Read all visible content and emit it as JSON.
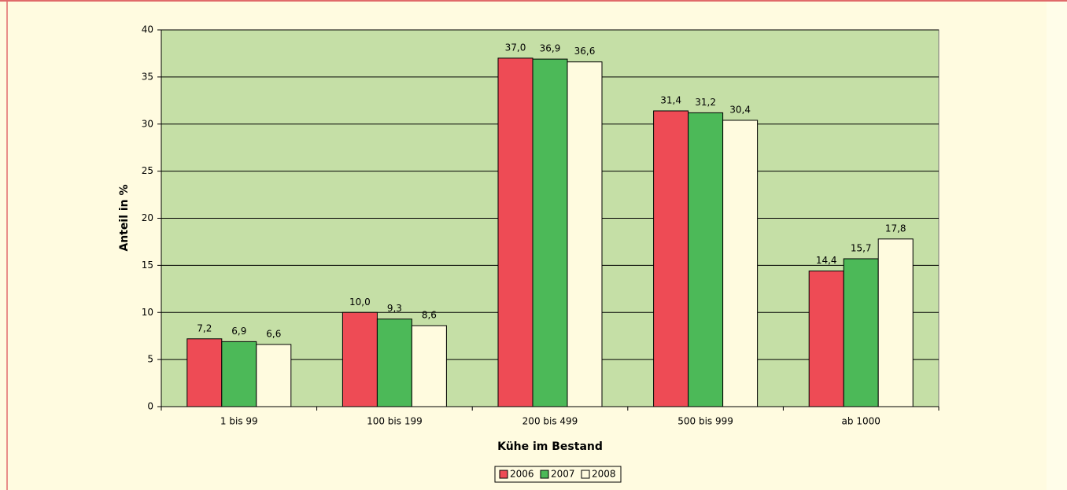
{
  "chart_data": {
    "type": "bar",
    "x_label": "Kühe im Bestand",
    "y_label": "Anteil in %",
    "categories": [
      "1 bis 99",
      "100 bis 199",
      "200 bis 499",
      "500 bis 999",
      "ab 1000"
    ],
    "series": [
      {
        "name": "2006",
        "color": "#ee4b55",
        "values": [
          7.2,
          10.0,
          37.0,
          31.4,
          14.4
        ],
        "value_labels": [
          "7,2",
          "10,0",
          "37,0",
          "31,4",
          "14,4"
        ]
      },
      {
        "name": "2007",
        "color": "#4cb958",
        "values": [
          6.9,
          9.3,
          36.9,
          31.2,
          15.7
        ],
        "value_labels": [
          "6,9",
          "9,3",
          "36,9",
          "31,2",
          "15,7"
        ]
      },
      {
        "name": "2008",
        "color": "#fffbdf",
        "values": [
          6.6,
          8.6,
          36.6,
          30.4,
          17.8
        ],
        "value_labels": [
          "6,6",
          "8,6",
          "36,6",
          "30,4",
          "17,8"
        ]
      }
    ],
    "ylim": [
      0,
      40
    ],
    "yticks": [
      0,
      5,
      10,
      15,
      20,
      25,
      30,
      35,
      40
    ],
    "grid": true,
    "legend": "bottom"
  }
}
